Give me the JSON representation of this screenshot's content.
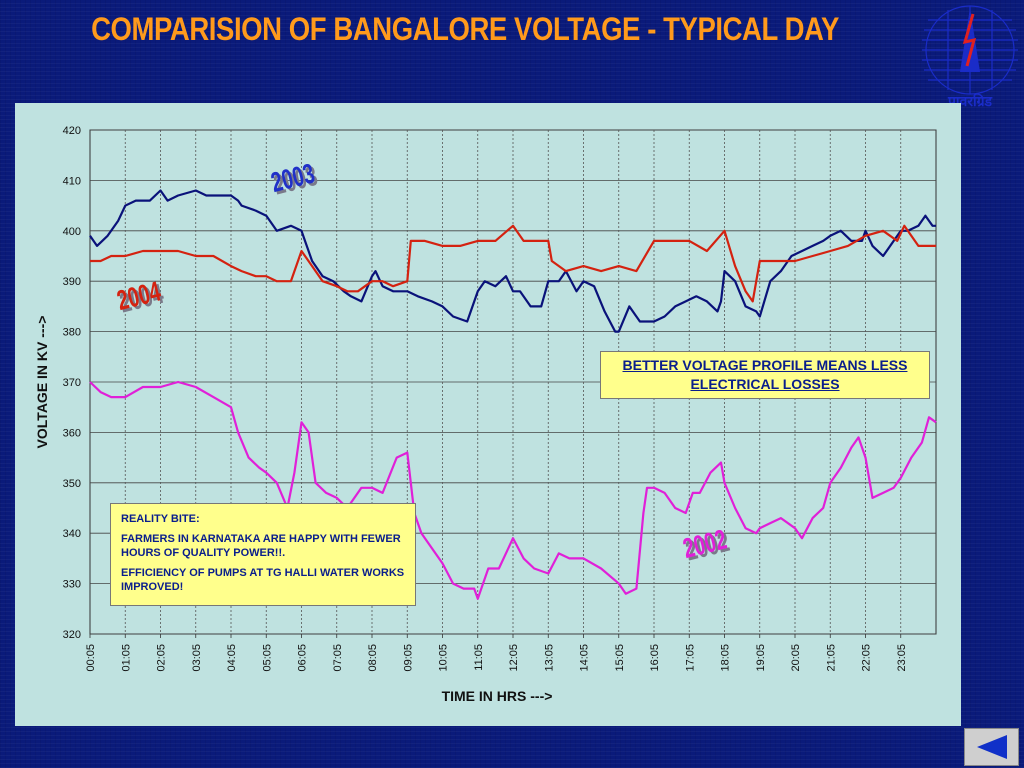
{
  "slide": {
    "title": "COMPARISION OF BANGALORE VOLTAGE  - TYPICAL DAY"
  },
  "logo": {
    "caption": "पावरग्रिड"
  },
  "colors": {
    "background": "#0a1a7a",
    "title": "#ff9a1c",
    "chart_bg": "#bfe2e0",
    "note_bg": "#ffff8c",
    "note_text": "#0a1e8c"
  },
  "chart_data": {
    "type": "line",
    "title": "",
    "xlabel": "TIME IN HRS --->",
    "ylabel": "VOLTAGE IN KV --->",
    "ylim": [
      320,
      420
    ],
    "yticks": [
      "320",
      "330",
      "340",
      "350",
      "360",
      "370",
      "380",
      "390",
      "400",
      "410",
      "420"
    ],
    "xlim": [
      0,
      24
    ],
    "xticks": [
      "00:05",
      "01:05",
      "02:05",
      "03:05",
      "04:05",
      "05:05",
      "06:05",
      "07:05",
      "08:05",
      "09:05",
      "10:05",
      "11:05",
      "12:05",
      "13:05",
      "14:05",
      "15:05",
      "16:05",
      "17:05",
      "18:05",
      "19:05",
      "20:05",
      "21:05",
      "22:05",
      "23:05"
    ],
    "grid": true,
    "legend": "none",
    "series": [
      {
        "name": "2003",
        "color": "#0a127a",
        "x": [
          0,
          0.2,
          0.5,
          0.8,
          1.0,
          1.3,
          1.7,
          2.0,
          2.2,
          2.5,
          3.0,
          3.3,
          3.7,
          4.0,
          4.2,
          4.3,
          4.7,
          5.0,
          5.3,
          5.7,
          6.0,
          6.1,
          6.3,
          6.6,
          6.9,
          7.2,
          7.4,
          7.7,
          8.0,
          8.1,
          8.3,
          8.6,
          9.0,
          9.3,
          9.7,
          10.0,
          10.3,
          10.7,
          11.0,
          11.2,
          11.5,
          11.8,
          12.0,
          12.2,
          12.5,
          12.8,
          13.0,
          13.3,
          13.5,
          13.8,
          14.0,
          14.3,
          14.6,
          14.9,
          15.0,
          15.3,
          15.6,
          16.0,
          16.3,
          16.6,
          16.9,
          17.2,
          17.5,
          17.8,
          17.9,
          18.0,
          18.3,
          18.6,
          18.9,
          19.0,
          19.3,
          19.6,
          19.9,
          20.2,
          20.5,
          20.8,
          21.0,
          21.3,
          21.6,
          21.9,
          22.0,
          22.2,
          22.5,
          22.8,
          23.0,
          23.2,
          23.5,
          23.7,
          23.9,
          24.0
        ],
        "values": [
          399,
          397,
          399,
          402,
          405,
          406,
          406,
          408,
          406,
          407,
          408,
          407,
          407,
          407,
          406,
          405,
          404,
          403,
          400,
          401,
          400,
          398,
          394,
          391,
          390,
          388,
          387,
          386,
          391,
          392,
          389,
          388,
          388,
          387,
          386,
          385,
          383,
          382,
          388,
          390,
          389,
          391,
          388,
          388,
          385,
          385,
          390,
          390,
          392,
          388,
          390,
          389,
          384,
          380,
          380,
          385,
          382,
          382,
          383,
          385,
          386,
          387,
          386,
          384,
          386,
          392,
          390,
          385,
          384,
          383,
          390,
          392,
          395,
          396,
          397,
          398,
          399,
          400,
          398,
          398,
          400,
          397,
          395,
          398,
          400,
          400,
          401,
          403,
          401,
          401
        ]
      },
      {
        "name": "2004",
        "color": "#d42210",
        "x": [
          0,
          0.3,
          0.6,
          1.0,
          1.5,
          2.0,
          2.5,
          3.0,
          3.5,
          4.0,
          4.3,
          4.7,
          5.0,
          5.3,
          5.7,
          6.0,
          6.3,
          6.6,
          7.0,
          7.3,
          7.6,
          8.0,
          8.3,
          8.6,
          9.0,
          9.1,
          9.5,
          10.0,
          10.5,
          11.0,
          11.5,
          12.0,
          12.3,
          12.6,
          13.0,
          13.1,
          13.5,
          14.0,
          14.5,
          15.0,
          15.5,
          16.0,
          16.5,
          17.0,
          17.5,
          18.0,
          18.3,
          18.6,
          18.8,
          19.0,
          19.5,
          20.0,
          20.5,
          21.0,
          21.5,
          22.0,
          22.5,
          22.9,
          23.1,
          23.5,
          24.0
        ],
        "values": [
          394,
          394,
          395,
          395,
          396,
          396,
          396,
          395,
          395,
          393,
          392,
          391,
          391,
          390,
          390,
          396,
          393,
          390,
          389,
          388,
          388,
          390,
          390,
          389,
          390,
          398,
          398,
          397,
          397,
          398,
          398,
          401,
          398,
          398,
          398,
          394,
          392,
          393,
          392,
          393,
          392,
          398,
          398,
          398,
          396,
          400,
          393,
          388,
          386,
          394,
          394,
          394,
          395,
          396,
          397,
          399,
          400,
          398,
          401,
          397,
          397
        ]
      },
      {
        "name": "2002",
        "color": "#e020d8",
        "x": [
          0,
          0.3,
          0.6,
          1.0,
          1.5,
          2.0,
          2.5,
          3.0,
          3.5,
          4.0,
          4.2,
          4.5,
          4.8,
          5.0,
          5.3,
          5.6,
          5.8,
          6.0,
          6.2,
          6.4,
          6.7,
          7.0,
          7.3,
          7.7,
          8.0,
          8.3,
          8.7,
          9.0,
          9.2,
          9.4,
          9.7,
          10.0,
          10.3,
          10.6,
          10.9,
          11.0,
          11.3,
          11.6,
          12.0,
          12.3,
          12.6,
          13.0,
          13.3,
          13.6,
          14.0,
          14.5,
          15.0,
          15.2,
          15.5,
          15.7,
          15.8,
          16.0,
          16.3,
          16.6,
          16.9,
          17.1,
          17.3,
          17.6,
          17.9,
          18.0,
          18.3,
          18.6,
          18.9,
          19.0,
          19.3,
          19.6,
          20.0,
          20.2,
          20.5,
          20.8,
          21.0,
          21.3,
          21.6,
          21.8,
          22.0,
          22.2,
          22.5,
          22.8,
          23.0,
          23.3,
          23.6,
          23.8,
          24.0
        ],
        "values": [
          370,
          368,
          367,
          367,
          369,
          369,
          370,
          369,
          367,
          365,
          360,
          355,
          353,
          352,
          350,
          345,
          352,
          362,
          360,
          350,
          348,
          347,
          345,
          349,
          349,
          348,
          355,
          356,
          344,
          340,
          337,
          334,
          330,
          329,
          329,
          327,
          333,
          333,
          339,
          335,
          333,
          332,
          336,
          335,
          335,
          333,
          330,
          328,
          329,
          344,
          349,
          349,
          348,
          345,
          344,
          348,
          348,
          352,
          354,
          350,
          345,
          341,
          340,
          341,
          342,
          343,
          341,
          339,
          343,
          345,
          350,
          353,
          357,
          359,
          355,
          347,
          348,
          349,
          351,
          355,
          358,
          363,
          362
        ]
      }
    ],
    "annotations": [
      "2003",
      "2004",
      "2002"
    ]
  },
  "notes": {
    "better": "BETTER VOLTAGE PROFILE MEANS LESS ELECTRICAL LOSSES",
    "reality_title": "REALITY BITE:",
    "reality_line1": "FARMERS IN KARNATAKA ARE HAPPY WITH FEWER HOURS OF QUALITY POWER!!.",
    "reality_line2": "EFFICIENCY OF PUMPS AT TG HALLI WATER WORKS IMPROVED!"
  },
  "nav": {
    "back_icon": "triangle-left-icon"
  }
}
